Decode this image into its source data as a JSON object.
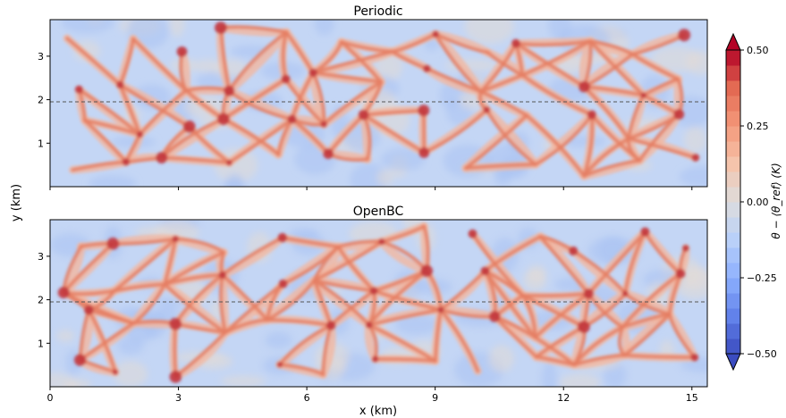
{
  "chart_data": [
    {
      "type": "heatmap",
      "title": "Periodic",
      "xlabel": "",
      "ylabel": "y (km)",
      "xlim": [
        0,
        15.36
      ],
      "ylim": [
        0,
        3.84
      ],
      "xticks": [
        0,
        3,
        6,
        9,
        12,
        15
      ],
      "xtick_labels_visible": false,
      "yticks": [
        1,
        2,
        3
      ],
      "ytick_labels": [
        "1",
        "2",
        "3"
      ],
      "reference_line": {
        "y": 1.95,
        "style": "dashed",
        "color": "#555555"
      },
      "field": "cellular convective pattern: broad cool (blue, about -0.2 to -0.3 K) cells bounded by narrow warm (red, up to about +0.5 K) filaments"
    },
    {
      "type": "heatmap",
      "title": "OpenBC",
      "xlabel": "x (km)",
      "ylabel": "",
      "xlim": [
        0,
        15.36
      ],
      "ylim": [
        0,
        3.84
      ],
      "xticks": [
        0,
        3,
        6,
        9,
        12,
        15
      ],
      "xtick_labels": [
        "0",
        "3",
        "6",
        "9",
        "12",
        "15"
      ],
      "yticks": [
        1,
        2,
        3
      ],
      "ytick_labels": [
        "1",
        "2",
        "3"
      ],
      "reference_line": {
        "y": 1.95,
        "style": "dashed",
        "color": "#555555"
      },
      "field": "cellular convective pattern: broad cool (blue) cells bounded by narrow warm (red) filaments"
    }
  ],
  "shared": {
    "ylabel": "y (km)"
  },
  "colorbar": {
    "label": "θ − ⟨θ_ref⟩ (K)",
    "vmin": -0.5,
    "vmax": 0.5,
    "ticks": [
      -0.5,
      -0.25,
      0.0,
      0.25,
      0.5
    ],
    "tick_labels": [
      "−0.50",
      "−0.25",
      "0.00",
      "0.25",
      "0.50"
    ],
    "extend": "both",
    "colormap": "coolwarm",
    "colors": [
      "#3b4cc0",
      "#6282ea",
      "#8db0fe",
      "#b9d0f9",
      "#dddddd",
      "#f5c4ac",
      "#f49a7b",
      "#e36a53",
      "#b40426"
    ]
  },
  "field_colors": {
    "cool_cell": "#c4d6f5",
    "cool_deep": "#a9c3f2",
    "neutral": "#e2dad6",
    "warm_light": "#f2b8a0",
    "warm_mid": "#e47e64",
    "warm_core": "#c0303a"
  }
}
